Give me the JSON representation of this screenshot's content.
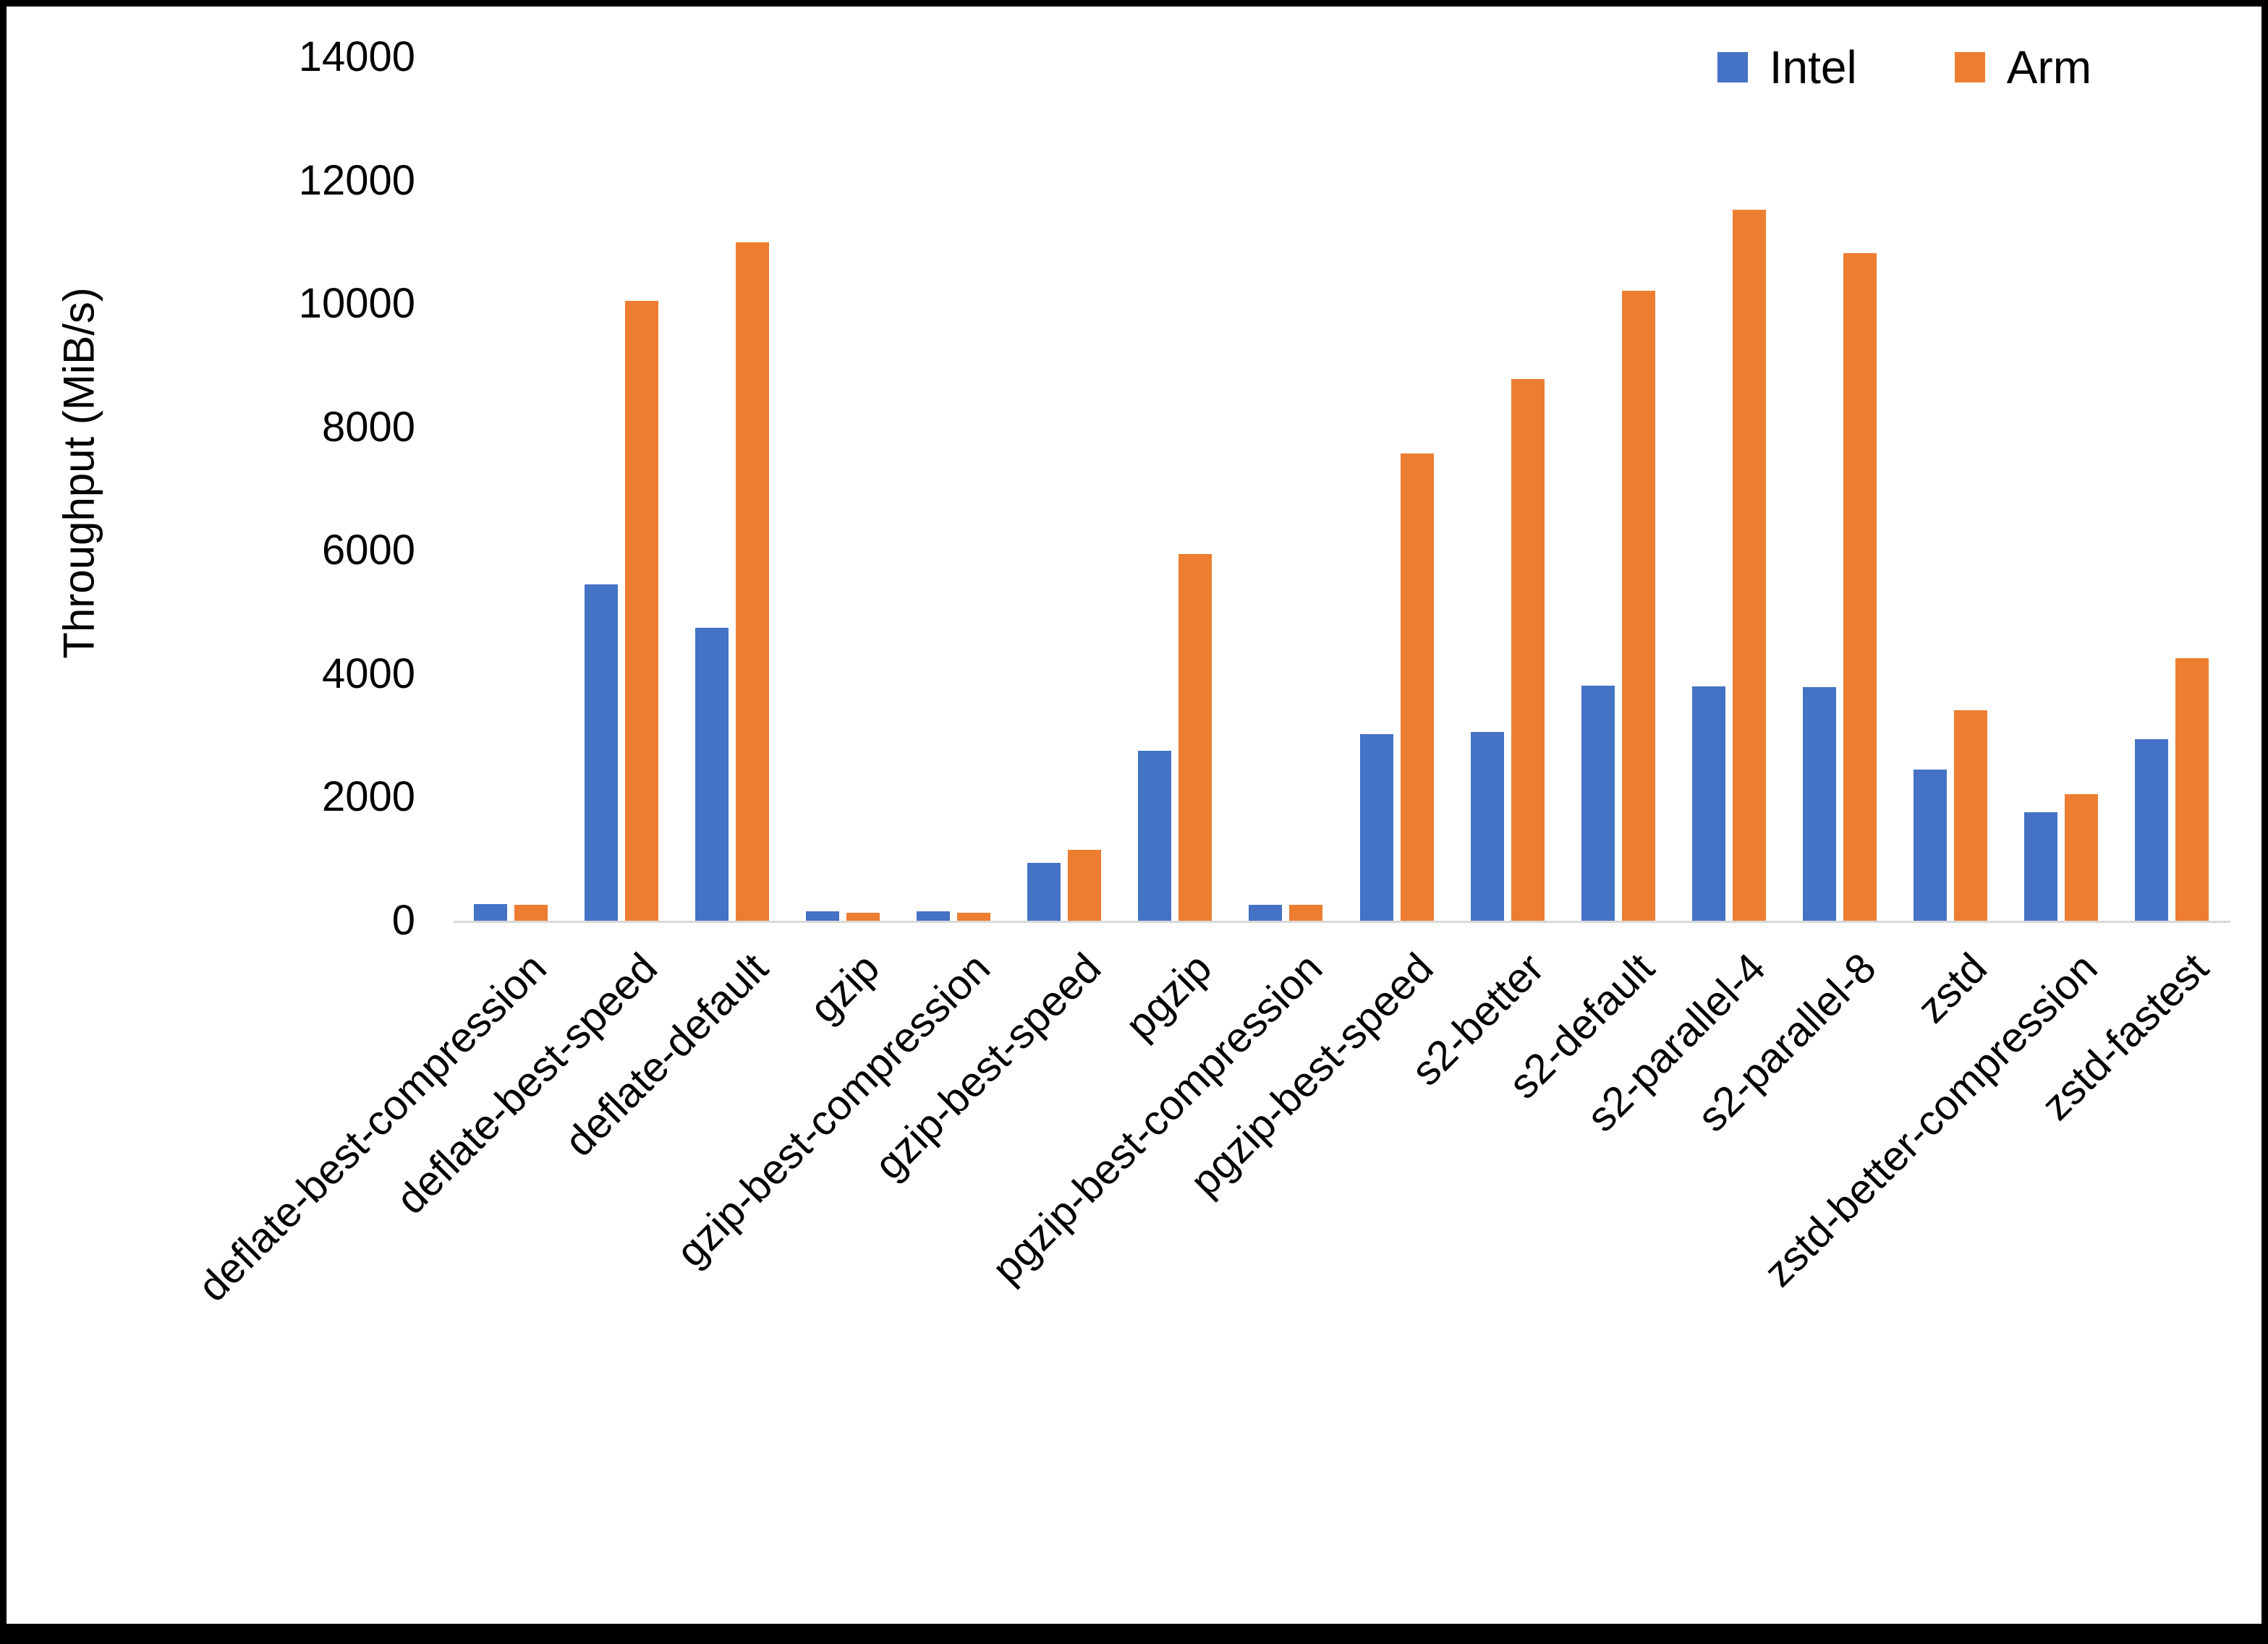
{
  "chart_data": {
    "type": "bar",
    "title": "",
    "ylabel": "Throughput (MiB/s)",
    "xlabel": "",
    "ylim": [
      0,
      14000
    ],
    "ytick_step": 2000,
    "yticks": [
      0,
      2000,
      4000,
      6000,
      8000,
      10000,
      12000,
      14000
    ],
    "grid": false,
    "legend_position": "top-right",
    "background": "#ffffff",
    "axis_line_color": "#d9d9d9",
    "categories": [
      "deflate-best-compression",
      "deflate-best-speed",
      "deflate-default",
      "gzip",
      "gzip-best-compression",
      "gzip-best-speed",
      "pgzip",
      "pgzip-best-compression",
      "pgzip-best-speed",
      "s2-better",
      "s2-default",
      "s2-parallel-4",
      "s2-parallel-8",
      "zstd",
      "zstd-better-compression",
      "zstd-fastest"
    ],
    "series": [
      {
        "name": "Intel",
        "color": "#4472C4",
        "values": [
          270,
          5450,
          4750,
          150,
          150,
          940,
          2760,
          260,
          3030,
          3060,
          3810,
          3800,
          3790,
          2450,
          1760,
          2940
        ]
      },
      {
        "name": "Arm",
        "color": "#ED7D31",
        "values": [
          260,
          10050,
          11000,
          130,
          130,
          1150,
          5950,
          260,
          7580,
          8780,
          10210,
          11530,
          10820,
          3410,
          2050,
          4260
        ]
      }
    ]
  }
}
